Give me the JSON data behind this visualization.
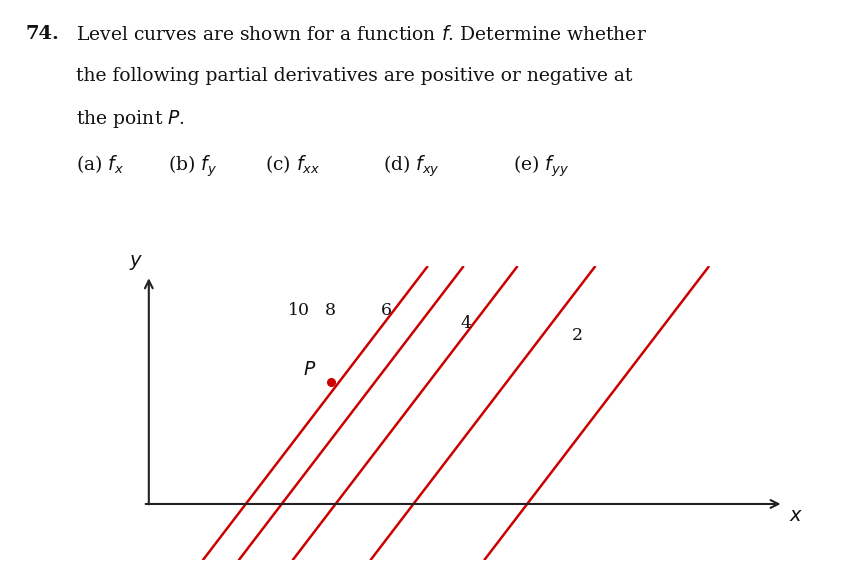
{
  "background_color": "#ffffff",
  "title_number": "74.",
  "title_text_line1": "Level curves are shown for a function $f$. Determine whether",
  "title_text_line2": "the following partial derivatives are positive or negative at",
  "title_text_line3": "the point $P$.",
  "parts_labels": [
    "(a) $f_x$",
    "(b) $f_y$",
    "(c) $f_{xx}$",
    "(d) $f_{xy}$",
    "(e) $f_{yy}$"
  ],
  "curve_color": "#cc0000",
  "curve_labels": [
    "10",
    "8",
    "6",
    "4",
    "2"
  ],
  "axes_color": "#222222",
  "point_P_color": "#cc0000",
  "curve_slope": 2.5,
  "curve_x_intercepts": [
    1.35,
    1.65,
    2.1,
    2.75,
    3.7
  ],
  "label_positions_x": [
    1.55,
    1.82,
    2.28,
    2.95,
    3.88
  ],
  "label_positions_y": [
    2.35,
    2.35,
    2.35,
    2.15,
    1.95
  ],
  "point_P_x": 1.82,
  "point_P_y": 1.35,
  "xlim": [
    -0.1,
    5.8
  ],
  "ylim": [
    -1.5,
    3.2
  ],
  "axis_origin_x": 0.3,
  "axis_origin_y": -0.6
}
